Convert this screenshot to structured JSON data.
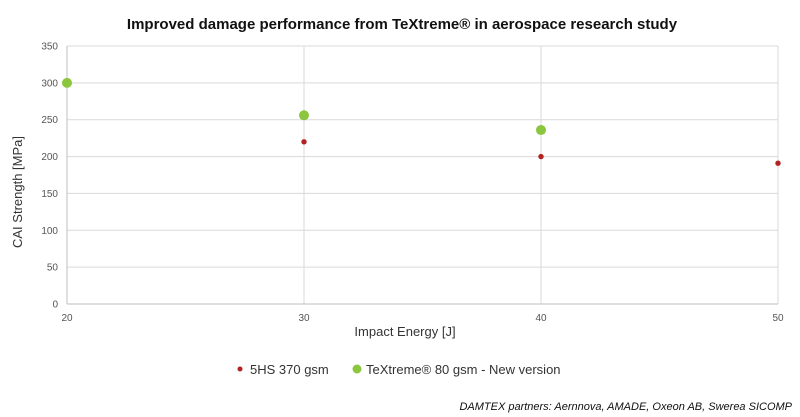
{
  "chart_data": {
    "type": "scatter",
    "title": "Improved damage performance from TeXtreme® in aerospace research study",
    "xlabel": "Impact Energy [J]",
    "ylabel": "CAI Strength [MPa]",
    "xlim": [
      20,
      50
    ],
    "ylim": [
      0,
      350
    ],
    "xticks": [
      20,
      30,
      40,
      50
    ],
    "yticks": [
      0,
      50,
      100,
      150,
      200,
      250,
      300,
      350
    ],
    "grid": true,
    "legend_position": "bottom",
    "series": [
      {
        "name": "5HS 370 gsm",
        "color": "#b22222",
        "marker": "small-circle",
        "points": [
          {
            "x": 30,
            "y": 220
          },
          {
            "x": 40,
            "y": 200
          },
          {
            "x": 50,
            "y": 191
          }
        ]
      },
      {
        "name": "TeXtreme® 80 gsm - New version",
        "color": "#8cc63f",
        "marker": "large-circle",
        "points": [
          {
            "x": 20,
            "y": 300
          },
          {
            "x": 30,
            "y": 256
          },
          {
            "x": 40,
            "y": 236
          }
        ]
      }
    ],
    "footnote": "DAMTEX partners: Aernnova, AMADE, Oxeon AB, Swerea SICOMP"
  }
}
